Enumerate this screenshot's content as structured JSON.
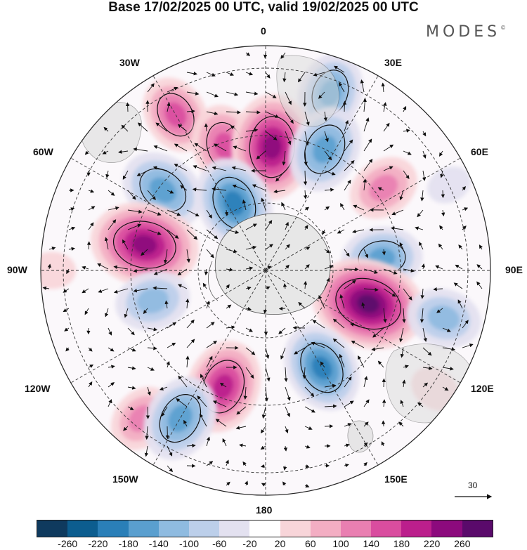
{
  "title": "Base 17/02/2025 00 UTC, valid 19/02/2025 00 UTC",
  "brand": "MODES",
  "brand_mark": "©",
  "longitudes": {
    "top": "0",
    "bottom": "180",
    "left": "90W",
    "right": "90E",
    "w30": "30W",
    "e30": "30E",
    "w60": "60W",
    "e60": "60E",
    "w120": "120W",
    "e120": "120E",
    "w150": "150W",
    "e150": "150E"
  },
  "vector_reference": "30",
  "colorbar": {
    "colors": [
      "#0f3a5e",
      "#0c5d8f",
      "#2a7fb8",
      "#5a9fcf",
      "#8fbbe0",
      "#bccfea",
      "#e3e1f0",
      "#ffffff",
      "#f8d5d9",
      "#f3aec3",
      "#e97fb1",
      "#d94d9f",
      "#bb1f8c",
      "#8c0a7d",
      "#5a0a6b"
    ],
    "ticks": [
      "-260",
      "-220",
      "-180",
      "-140",
      "-100",
      "-60",
      "-20",
      "20",
      "60",
      "100",
      "140",
      "180",
      "220",
      "260"
    ]
  },
  "anomalies": [
    {
      "lon": -30,
      "colat": 0.8,
      "value": 150
    },
    {
      "lon": -18,
      "colat": 0.58,
      "value": 170
    },
    {
      "lon": 20,
      "colat": 0.84,
      "value": -160
    },
    {
      "lon": 3,
      "colat": 0.55,
      "value": 240
    },
    {
      "lon": -52,
      "colat": 0.58,
      "value": -180
    },
    {
      "lon": -25,
      "colat": 0.33,
      "value": -200
    },
    {
      "lon": 26,
      "colat": 0.6,
      "value": -180
    },
    {
      "lon": 55,
      "colat": 0.64,
      "value": 130
    },
    {
      "lon": -78,
      "colat": 0.55,
      "value": 250
    },
    {
      "lon": 84,
      "colat": 0.52,
      "value": -160
    },
    {
      "lon": -105,
      "colat": 0.52,
      "value": -140
    },
    {
      "lon": 108,
      "colat": 0.48,
      "value": 270
    },
    {
      "lon": 105,
      "colat": 0.82,
      "value": -140
    },
    {
      "lon": 150,
      "colat": 0.5,
      "value": -190
    },
    {
      "lon": -160,
      "colat": 0.55,
      "value": 200
    },
    {
      "lon": -140,
      "colat": 0.86,
      "value": 120
    },
    {
      "lon": -150,
      "colat": 0.76,
      "value": -180
    },
    {
      "lon": 125,
      "colat": 0.92,
      "value": 60
    },
    {
      "lon": -90,
      "colat": 0.95,
      "value": 50
    },
    {
      "lon": 65,
      "colat": 0.9,
      "value": -40
    }
  ]
}
